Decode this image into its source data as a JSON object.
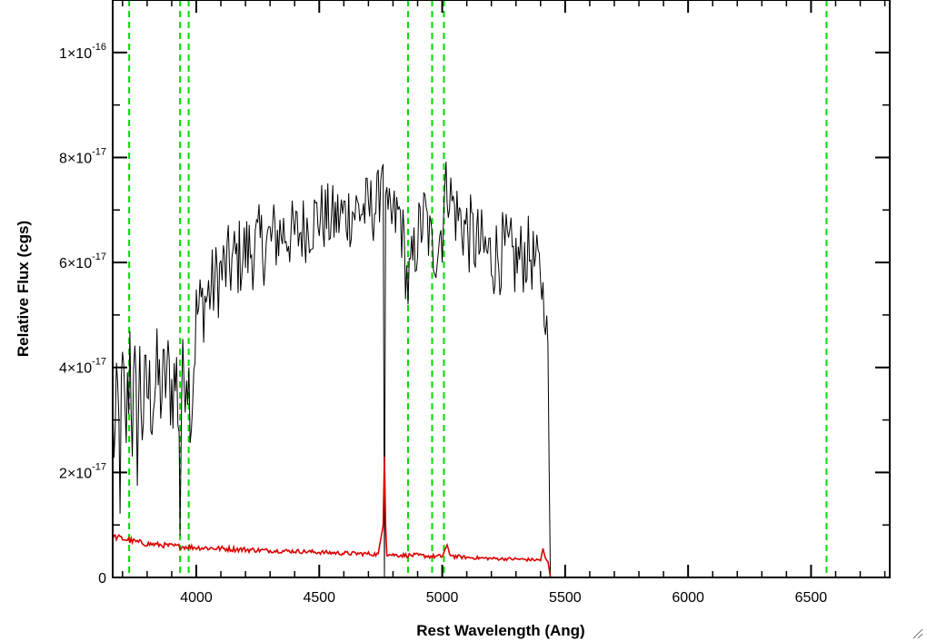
{
  "chart_data": {
    "type": "line",
    "xlabel": "Rest Wavelength (Ang)",
    "ylabel": "Relative Flux (cgs)",
    "xlim": [
      3660,
      6820
    ],
    "ylim": [
      0,
      1.1e-16
    ],
    "x_ticks": [
      4000,
      4500,
      5000,
      5500,
      6000,
      6500
    ],
    "x_tick_labels": [
      "4000",
      "4500",
      "5000",
      "5500",
      "6000",
      "6500"
    ],
    "y_ticks": [
      0,
      2e-17,
      4e-17,
      6e-17,
      8e-17,
      1e-16
    ],
    "y_tick_labels": [
      {
        "mantissa": "0",
        "exponent": ""
      },
      {
        "mantissa": "2×10",
        "exponent": "-17"
      },
      {
        "mantissa": "4×10",
        "exponent": "-17"
      },
      {
        "mantissa": "6×10",
        "exponent": "-17"
      },
      {
        "mantissa": "8×10",
        "exponent": "-17"
      },
      {
        "mantissa": "1×10",
        "exponent": "-16"
      }
    ],
    "vertical_lines": {
      "color": "#00dd00",
      "style": "dashed",
      "x": [
        3727,
        3934,
        3969,
        4861,
        4959,
        5007,
        6563
      ]
    },
    "series": [
      {
        "color": "#000000",
        "x": [
          3660,
          3670,
          3680,
          3690,
          3700,
          3710,
          3720,
          3730,
          3740,
          3750,
          3760,
          3770,
          3780,
          3800,
          3820,
          3840,
          3860,
          3880,
          3900,
          3920,
          3930,
          3934,
          3940,
          3960,
          3980,
          4000,
          4050,
          4100,
          4150,
          4200,
          4250,
          4300,
          4350,
          4400,
          4450,
          4500,
          4550,
          4600,
          4650,
          4700,
          4740,
          4760,
          4765,
          4770,
          4775,
          4780,
          4800,
          4830,
          4861,
          4900,
          4930,
          4959,
          4980,
          5000,
          5007,
          5020,
          5050,
          5100,
          5150,
          5200,
          5250,
          5300,
          5350,
          5400,
          5420,
          5430,
          5435,
          5440,
          5500,
          6000,
          6500,
          6820
        ],
        "y": [
          3e-17,
          2.5e-17,
          3.3e-17,
          2e-17,
          3.8e-17,
          2.7e-17,
          3.2e-17,
          4.5e-17,
          3e-17,
          3.6e-17,
          2.6e-17,
          3.9e-17,
          3.1e-17,
          3.6e-17,
          3.4e-17,
          3.8e-17,
          3.5e-17,
          3.9e-17,
          3.6e-17,
          3.8e-17,
          3e-17,
          8e-18,
          3.5e-17,
          4.2e-17,
          3.2e-17,
          5e-17,
          5.4e-17,
          5.8e-17,
          6e-17,
          6.2e-17,
          6.3e-17,
          6.4e-17,
          6.6e-17,
          6.5e-17,
          6.7e-17,
          6.9e-17,
          6.8e-17,
          6.9e-17,
          7e-17,
          7e-17,
          7.1e-17,
          8.2e-17,
          0.0,
          7.5e-17,
          6.8e-17,
          6.7e-17,
          6.8e-17,
          6.9e-17,
          5.5e-17,
          6.5e-17,
          6.9e-17,
          6.2e-17,
          6.4e-17,
          6.7e-17,
          7.3e-17,
          7.5e-17,
          7e-17,
          6.6e-17,
          6.3e-17,
          6.1e-17,
          6.2e-17,
          6e-17,
          6.2e-17,
          5.8e-17,
          5e-17,
          4.5e-17,
          2e-17,
          0,
          0,
          0,
          0,
          0
        ],
        "noise": [
          1.2e-17,
          1.2e-17,
          1.2e-17,
          1.2e-17,
          1.2e-17,
          1.2e-17,
          1.2e-17,
          1.2e-17,
          1.2e-17,
          1.1e-17,
          1.1e-17,
          1.1e-17,
          1.1e-17,
          1e-17,
          1e-17,
          1e-17,
          1e-17,
          1e-17,
          1e-17,
          1e-17,
          1e-17,
          0,
          1e-17,
          9e-18,
          9e-18,
          8e-18,
          8e-18,
          8e-18,
          8e-18,
          8e-18,
          8e-18,
          8e-18,
          7e-18,
          7e-18,
          7e-18,
          7e-18,
          7e-18,
          7e-18,
          7e-18,
          7e-18,
          7e-18,
          5e-18,
          0,
          5e-18,
          7e-18,
          7e-18,
          7e-18,
          7e-18,
          7e-18,
          7e-18,
          7e-18,
          7e-18,
          8e-18,
          8e-18,
          6e-18,
          6e-18,
          7e-18,
          8e-18,
          8e-18,
          8e-18,
          8e-18,
          8e-18,
          7e-18,
          6e-18,
          4e-18,
          3e-18,
          0,
          0,
          0,
          0,
          0,
          0
        ]
      },
      {
        "color": "#dd0000",
        "x": [
          3660,
          3700,
          3750,
          3800,
          3900,
          4000,
          4100,
          4200,
          4300,
          4400,
          4500,
          4600,
          4700,
          4740,
          4760,
          4765,
          4770,
          4775,
          4780,
          4800,
          4861,
          4900,
          4959,
          5000,
          5020,
          5030,
          5050,
          5100,
          5200,
          5300,
          5350,
          5400,
          5410,
          5420,
          5430,
          5440,
          5500,
          6000,
          6500,
          6820
        ],
        "y": [
          7.8e-18,
          7.4e-18,
          6.8e-18,
          6.4e-18,
          6e-18,
          5.7e-18,
          5.5e-18,
          5.3e-18,
          5.1e-18,
          5e-18,
          4.8e-18,
          4.6e-18,
          4.5e-18,
          4.4e-18,
          1e-17,
          2.3e-17,
          1e-17,
          4.4e-18,
          4.4e-18,
          4.3e-18,
          4.2e-18,
          4.2e-18,
          4e-18,
          4e-18,
          6.2e-18,
          4.5e-18,
          4e-18,
          3.8e-18,
          3.6e-18,
          3.5e-18,
          3.4e-18,
          3.3e-18,
          5.5e-18,
          3.5e-18,
          3e-18,
          0,
          0,
          0,
          0,
          0
        ],
        "noise": [
          6e-19,
          6e-19,
          6e-19,
          5e-19,
          5e-19,
          5e-19,
          5e-19,
          5e-19,
          4e-19,
          4e-19,
          4e-19,
          4e-19,
          4e-19,
          4e-19,
          0,
          0,
          0,
          4e-19,
          4e-19,
          4e-19,
          4e-19,
          4e-19,
          4e-19,
          4e-19,
          0,
          4e-19,
          4e-19,
          3e-19,
          3e-19,
          3e-19,
          3e-19,
          3e-19,
          0,
          3e-19,
          2e-19,
          0,
          0,
          0,
          0,
          0
        ]
      }
    ],
    "grid": false,
    "legend": "none"
  }
}
